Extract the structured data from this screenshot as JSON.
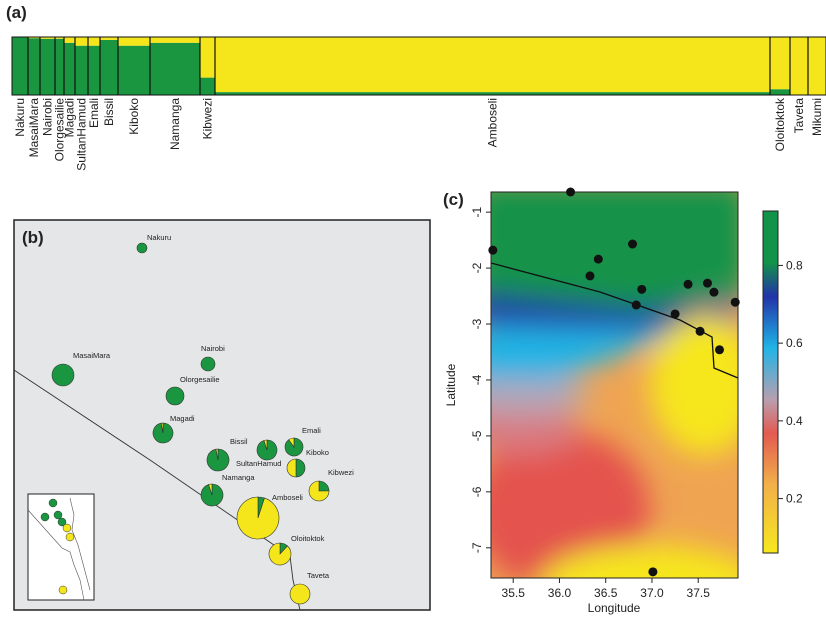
{
  "chart_data": [
    {
      "type": "structure",
      "panel": "(a)",
      "categories": [
        "Nakuru",
        "MasaiMara",
        "Nairobi",
        "Olorgesailie",
        "Magadi",
        "SultanHamud",
        "Emali",
        "Bissil",
        "Kiboko",
        "Namanga",
        "Kibwezi",
        "Amboseli",
        "Oloitoktok",
        "Taveta",
        "Mikumi"
      ],
      "sample_sizes": [
        16,
        12,
        15,
        9,
        11,
        13,
        12,
        18,
        32,
        50,
        15,
        555,
        20,
        18,
        18
      ],
      "series": [
        {
          "color": "#1a9641",
          "values": [
            1.0,
            0.98,
            0.97,
            0.97,
            0.9,
            0.85,
            0.85,
            0.95,
            0.85,
            0.9,
            0.3,
            0.05,
            0.1,
            0.0,
            0.0
          ]
        },
        {
          "color": "#f5e61c",
          "values": [
            0.0,
            0.02,
            0.03,
            0.03,
            0.1,
            0.15,
            0.15,
            0.05,
            0.15,
            0.1,
            0.7,
            0.95,
            0.9,
            1.0,
            1.0
          ]
        }
      ]
    },
    {
      "type": "pie_map",
      "panel": "(b)",
      "categories": [
        "Nakuru",
        "MasaiMara",
        "Nairobi",
        "Olorgesailie",
        "Magadi",
        "Bissil",
        "Emali",
        "SultanHamud",
        "Kiboko",
        "Namanga",
        "Kibwezi",
        "Amboseli",
        "Oloitoktok",
        "Taveta"
      ],
      "series": [
        {
          "color": "#1a9641",
          "values": [
            1.0,
            1.0,
            1.0,
            1.0,
            0.97,
            0.97,
            0.9,
            0.95,
            0.5,
            0.95,
            0.25,
            0.05,
            0.12,
            0.0
          ]
        },
        {
          "color": "#f5e61c",
          "values": [
            0.0,
            0.0,
            0.0,
            0.0,
            0.03,
            0.03,
            0.1,
            0.05,
            0.5,
            0.05,
            0.75,
            0.95,
            0.88,
            1.0
          ]
        }
      ]
    },
    {
      "type": "heatmap",
      "panel": "(c)",
      "x_label": "Longitude",
      "y_label": "Latitude",
      "xlim": [
        35.26,
        37.93
      ],
      "ylim": [
        -7.54,
        -0.64
      ],
      "xticks": [
        35.5,
        {
          "value": 36,
          "label": "36.0"
        },
        36.5,
        {
          "value": 37,
          "label": "37.0"
        },
        37.5
      ],
      "yticks": [
        -1,
        -2,
        -3,
        -4,
        -5,
        -6,
        -7
      ],
      "clim": [
        0.06,
        0.94
      ],
      "cticks": [
        0.2,
        0.4,
        0.6,
        0.8
      ],
      "points": {
        "x": [
          35.28,
          36.12,
          36.42,
          36.33,
          36.79,
          36.89,
          36.83,
          37.25,
          37.39,
          37.6,
          37.67,
          37.9,
          37.52,
          37.73,
          37.01
        ],
        "y": [
          -1.68,
          -0.64,
          -1.84,
          -2.14,
          -1.57,
          -2.38,
          -2.66,
          -2.82,
          -2.29,
          -2.27,
          -2.43,
          -2.61,
          -3.13,
          -3.46,
          -7.43
        ]
      }
    }
  ]
}
